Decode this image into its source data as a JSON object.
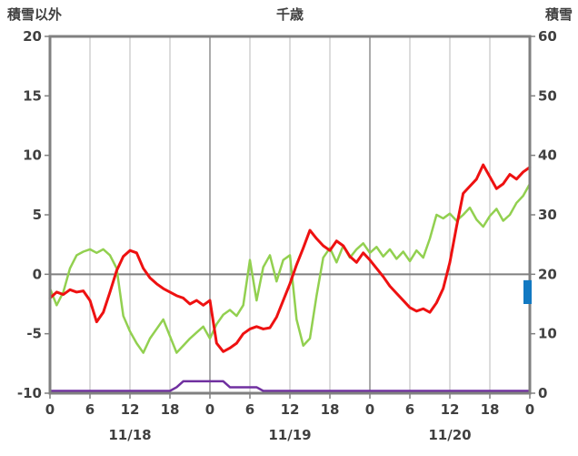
{
  "header": {
    "left_title": "積雪以外",
    "center_title": "千歳",
    "right_title": "積雪"
  },
  "colors": {
    "frame": "#808080",
    "grid_minor": "#b8b8b8",
    "grid_day": "#8f8f8f",
    "zero_line": "#7f7f7f",
    "text": "#404040",
    "plot_bg": "#ffffff"
  },
  "chart_data": {
    "type": "line",
    "title": "千歳",
    "x_unit": "hour",
    "x_hours_span": 72,
    "x_tick_hours": [
      0,
      6,
      12,
      18,
      24,
      30,
      36,
      42,
      48,
      54,
      60,
      66,
      72
    ],
    "x_tick_labels": [
      "0",
      "6",
      "12",
      "18",
      "0",
      "6",
      "12",
      "18",
      "0",
      "6",
      "12",
      "18",
      "0"
    ],
    "date_labels": [
      {
        "label": "11/18",
        "hour": 12
      },
      {
        "label": "11/19",
        "hour": 36
      },
      {
        "label": "11/20",
        "hour": 60
      }
    ],
    "left_axis": {
      "title": "積雪以外",
      "min": -10,
      "max": 20,
      "ticks": [
        20,
        15,
        10,
        5,
        0,
        -5,
        -10
      ]
    },
    "right_axis": {
      "title": "積雪",
      "min": 0,
      "max": 60,
      "ticks": [
        60,
        50,
        40,
        30,
        20,
        10,
        0
      ]
    },
    "grid": {
      "vertical": true,
      "horizontal": false,
      "zero_line": true
    },
    "series": [
      {
        "name": "snow-depth",
        "color": "#7030a0",
        "axis": "right",
        "width": 2.5,
        "values": [
          0,
          0,
          0,
          0,
          0,
          0,
          0,
          0,
          0,
          0,
          0,
          0,
          0,
          0,
          0,
          0,
          0,
          0,
          0,
          1,
          2,
          2,
          2,
          2,
          2,
          2,
          2,
          1,
          1,
          1,
          1,
          1,
          0,
          0,
          0,
          0,
          0,
          0,
          0,
          0,
          0,
          0,
          0,
          0,
          0,
          0,
          0,
          0,
          0,
          0,
          0,
          0,
          0,
          0,
          0,
          0,
          0,
          0,
          0,
          0,
          0,
          0,
          0,
          0,
          0,
          0,
          0,
          0,
          0,
          0,
          0,
          0,
          0
        ]
      },
      {
        "name": "green-series",
        "color": "#92d050",
        "axis": "left",
        "width": 2.5,
        "values": [
          -1.2,
          -2.6,
          -1.5,
          0.5,
          1.6,
          1.9,
          2.1,
          1.8,
          2.1,
          1.6,
          0.5,
          -3.5,
          -4.8,
          -5.8,
          -6.6,
          -5.4,
          -4.6,
          -3.8,
          -5.2,
          -6.6,
          -6.0,
          -5.4,
          -4.9,
          -4.4,
          -5.4,
          -4.2,
          -3.4,
          -3.0,
          -3.5,
          -2.6,
          1.2,
          -2.2,
          0.6,
          1.6,
          -0.6,
          1.2,
          1.6,
          -3.8,
          -6.0,
          -5.4,
          -1.8,
          1.4,
          2.2,
          1.0,
          2.4,
          1.4,
          2.1,
          2.6,
          1.8,
          2.3,
          1.5,
          2.1,
          1.3,
          1.9,
          1.1,
          2.0,
          1.4,
          3.0,
          5.0,
          4.7,
          5.1,
          4.5,
          5.0,
          5.6,
          4.6,
          4.0,
          4.9,
          5.5,
          4.5,
          5.0,
          6.0,
          6.6,
          7.6
        ]
      },
      {
        "name": "temperature",
        "color": "#ee1111",
        "axis": "left",
        "width": 3,
        "values": [
          -2.0,
          -1.5,
          -1.7,
          -1.3,
          -1.5,
          -1.4,
          -2.2,
          -4.0,
          -3.2,
          -1.5,
          0.3,
          1.5,
          2.0,
          1.8,
          0.5,
          -0.3,
          -0.8,
          -1.2,
          -1.5,
          -1.8,
          -2.0,
          -2.5,
          -2.2,
          -2.6,
          -2.2,
          -5.8,
          -6.5,
          -6.2,
          -5.8,
          -5.0,
          -4.6,
          -4.4,
          -4.6,
          -4.5,
          -3.6,
          -2.2,
          -0.8,
          0.8,
          2.2,
          3.7,
          3.0,
          2.4,
          2.0,
          2.8,
          2.4,
          1.5,
          1.0,
          1.8,
          1.2,
          0.5,
          -0.2,
          -1.0,
          -1.6,
          -2.2,
          -2.8,
          -3.1,
          -2.9,
          -3.2,
          -2.4,
          -1.2,
          1.0,
          4.0,
          6.8,
          7.4,
          8.0,
          9.2,
          8.2,
          7.2,
          7.6,
          8.4,
          8.0,
          8.6,
          9.0
        ]
      }
    ],
    "marker": {
      "name": "snow-marker-bar",
      "color": "#1279c2",
      "axis": "right",
      "hour": 72,
      "value_top": 19,
      "value_bottom": 15,
      "width": 9
    }
  }
}
